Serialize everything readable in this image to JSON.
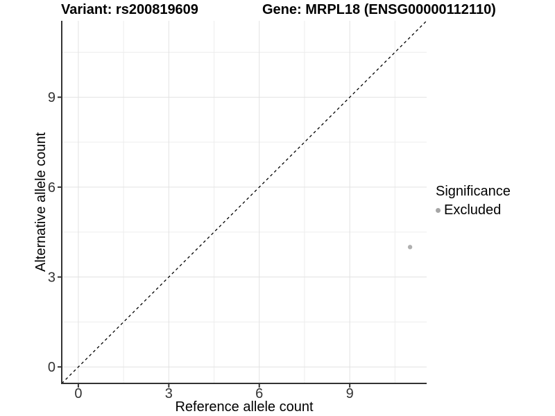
{
  "page": {
    "background": "#ffffff"
  },
  "header": {
    "title_left": "Variant: rs200819609",
    "title_right": "Gene: MRPL18 (ENSG00000112110)"
  },
  "chart_data": {
    "type": "scatter",
    "title": "Variant: rs200819609  Gene: MRPL18 (ENSG00000112110)",
    "xlabel": "Reference allele count",
    "ylabel": "Alternative allele count",
    "xlim": [
      -0.55,
      11.55
    ],
    "ylim": [
      -0.55,
      11.55
    ],
    "x_ticks": [
      0,
      3,
      6,
      9
    ],
    "y_ticks": [
      0,
      3,
      6,
      9
    ],
    "x_minor_ticks": [
      1.5,
      4.5,
      7.5,
      10.5
    ],
    "y_minor_ticks": [
      1.5,
      4.5,
      7.5,
      10.5
    ],
    "grid": true,
    "points": [
      {
        "x": 11,
        "y": 4,
        "series": "Excluded"
      }
    ],
    "reference_line": {
      "kind": "identity",
      "slope": 1,
      "intercept": 0,
      "style": "dashed"
    },
    "legend": {
      "title": "Significance",
      "position": "right",
      "items": [
        {
          "label": "Excluded",
          "color": "#a6a6a6"
        }
      ]
    },
    "colors": {
      "point": "#b0b0b0",
      "grid_major": "#e2e2e2",
      "grid_minor": "#ededed",
      "axis_line": "#333333",
      "tick_text": "#333333",
      "reference_line": "#000000"
    }
  }
}
